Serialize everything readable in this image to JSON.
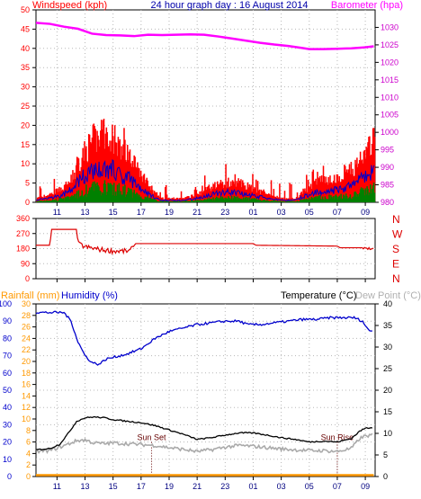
{
  "chart_data": [
    {
      "type": "line",
      "panel": "wind-and-barometer",
      "title": "24 hour graph day : 16 August 2014",
      "left_axis_label": "Windspeed (kph)",
      "right_axis_label": "Barometer (hpa)",
      "x_ticks": [
        "11",
        "13",
        "15",
        "17",
        "19",
        "21",
        "23",
        "01",
        "03",
        "05",
        "07",
        "09"
      ],
      "x_range": [
        9.5,
        33.7
      ],
      "left_ticks": [
        0,
        5,
        10,
        15,
        20,
        25,
        30,
        35,
        40,
        45,
        50
      ],
      "left_range": [
        0,
        50
      ],
      "right_ticks": [
        980,
        985,
        990,
        995,
        1000,
        1005,
        1010,
        1015,
        1020,
        1025,
        1030
      ],
      "right_range": [
        980,
        1035
      ],
      "barometer": {
        "color": "#ff00ff",
        "points": [
          [
            9.5,
            1031.3
          ],
          [
            10.5,
            1031.0
          ],
          [
            11.5,
            1030.2
          ],
          [
            12.5,
            1029.6
          ],
          [
            13.5,
            1028.2
          ],
          [
            14.5,
            1027.8
          ],
          [
            15.5,
            1027.7
          ],
          [
            16.5,
            1027.5
          ],
          [
            17.5,
            1027.9
          ],
          [
            18.5,
            1027.8
          ],
          [
            19.5,
            1027.9
          ],
          [
            20.5,
            1028.0
          ],
          [
            21.5,
            1027.9
          ],
          [
            22.5,
            1027.4
          ],
          [
            23.5,
            1026.8
          ],
          [
            24.5,
            1026.2
          ],
          [
            25.5,
            1025.6
          ],
          [
            26.5,
            1025.1
          ],
          [
            27.5,
            1024.7
          ],
          [
            28.5,
            1024.1
          ],
          [
            29.0,
            1023.8
          ],
          [
            30.0,
            1023.8
          ],
          [
            31.0,
            1023.9
          ],
          [
            32.0,
            1024.0
          ],
          [
            33.0,
            1024.3
          ],
          [
            33.6,
            1024.6
          ]
        ]
      },
      "wind_gust_color": "#ff0000",
      "wind_avg_color": "#0000cc",
      "wind_lull_color": "#008000",
      "wind_profile": [
        [
          9.5,
          1
        ],
        [
          10.5,
          2
        ],
        [
          11.5,
          4
        ],
        [
          12.0,
          6
        ],
        [
          12.8,
          12
        ],
        [
          13.6,
          16
        ],
        [
          14.4,
          17
        ],
        [
          15.0,
          16
        ],
        [
          15.8,
          13
        ],
        [
          16.5,
          10
        ],
        [
          17.2,
          6
        ],
        [
          17.8,
          3
        ],
        [
          18.4,
          1
        ],
        [
          19.0,
          1
        ],
        [
          20.0,
          1
        ],
        [
          21.0,
          2
        ],
        [
          22.0,
          4
        ],
        [
          23.0,
          5
        ],
        [
          24.0,
          5
        ],
        [
          24.6,
          4
        ],
        [
          25.2,
          3
        ],
        [
          26.0,
          2
        ],
        [
          27.0,
          1
        ],
        [
          28.0,
          1
        ],
        [
          28.6,
          3
        ],
        [
          29.5,
          5
        ],
        [
          30.3,
          6
        ],
        [
          31.0,
          6
        ],
        [
          31.6,
          7
        ],
        [
          32.2,
          9
        ],
        [
          32.8,
          12
        ],
        [
          33.2,
          14
        ],
        [
          33.6,
          16
        ]
      ]
    },
    {
      "type": "line",
      "panel": "wind-direction",
      "left_ticks": [
        0,
        90,
        180,
        270,
        360
      ],
      "left_range": [
        0,
        360
      ],
      "compass_labels": [
        "N",
        "W",
        "S",
        "E",
        "N"
      ],
      "color": "#dd0000",
      "points": [
        [
          9.5,
          200
        ],
        [
          10.5,
          200
        ],
        [
          10.6,
          295
        ],
        [
          12.4,
          295
        ],
        [
          12.5,
          210
        ],
        [
          13.0,
          190
        ],
        [
          14.0,
          175
        ],
        [
          15.0,
          165
        ],
        [
          16.2,
          165
        ],
        [
          16.4,
          185
        ],
        [
          16.6,
          210
        ],
        [
          25.0,
          210
        ],
        [
          25.2,
          200
        ],
        [
          31.0,
          195
        ],
        [
          31.2,
          185
        ],
        [
          33.0,
          185
        ],
        [
          33.6,
          175
        ]
      ]
    },
    {
      "type": "line",
      "panel": "rain-humidity-temperature",
      "rain_label": "Rainfall (mm)",
      "humidity_label": "Humidity (%)",
      "temperature_label": "Temperature (°C)",
      "dewpoint_label": "Dew Point (°C)",
      "rain_ticks": [
        0,
        2,
        4,
        6,
        8,
        10,
        12,
        14,
        16,
        18,
        20,
        22,
        24,
        26,
        28,
        30
      ],
      "rain_range": [
        0,
        30
      ],
      "humidity_ticks": [
        0,
        10,
        20,
        30,
        40,
        50,
        60,
        70,
        80,
        90,
        100
      ],
      "humidity_range": [
        0,
        100
      ],
      "temp_ticks": [
        0,
        5,
        10,
        15,
        20,
        25,
        30,
        35,
        40
      ],
      "temp_range": [
        0,
        40
      ],
      "sunset_label": "Sun Set",
      "sunset_x": 17.75,
      "sunrise_label": "Sun Rise",
      "sunrise_x": 31.0,
      "humidity": {
        "color": "#0000cc",
        "points": [
          [
            9.5,
            95
          ],
          [
            10.5,
            95
          ],
          [
            11.5,
            95
          ],
          [
            12.0,
            90
          ],
          [
            12.5,
            78
          ],
          [
            13.0,
            70
          ],
          [
            13.5,
            66
          ],
          [
            14.0,
            65
          ],
          [
            14.5,
            68
          ],
          [
            15.0,
            69
          ],
          [
            16.0,
            71
          ],
          [
            17.0,
            74
          ],
          [
            18.0,
            80
          ],
          [
            19.0,
            84
          ],
          [
            20.0,
            86
          ],
          [
            21.0,
            88
          ],
          [
            22.0,
            89
          ],
          [
            23.0,
            90
          ],
          [
            24.0,
            90
          ],
          [
            24.6,
            88
          ],
          [
            25.5,
            88
          ],
          [
            26.5,
            89
          ],
          [
            27.5,
            90
          ],
          [
            28.5,
            91
          ],
          [
            29.5,
            91
          ],
          [
            30.5,
            92
          ],
          [
            31.5,
            92
          ],
          [
            32.2,
            92
          ],
          [
            32.8,
            90
          ],
          [
            33.2,
            85
          ],
          [
            33.6,
            84
          ]
        ]
      },
      "temperature": {
        "color": "#000000",
        "points": [
          [
            9.5,
            6.2
          ],
          [
            10.5,
            6.5
          ],
          [
            11.2,
            7.5
          ],
          [
            11.8,
            10.0
          ],
          [
            12.4,
            12.8
          ],
          [
            13.0,
            13.6
          ],
          [
            13.6,
            13.8
          ],
          [
            14.4,
            13.6
          ],
          [
            15.0,
            13.2
          ],
          [
            16.0,
            12.8
          ],
          [
            17.0,
            12.5
          ],
          [
            18.0,
            11.8
          ],
          [
            19.0,
            10.8
          ],
          [
            20.0,
            9.8
          ],
          [
            21.0,
            8.6
          ],
          [
            22.0,
            9.0
          ],
          [
            23.0,
            9.6
          ],
          [
            24.0,
            10.1
          ],
          [
            25.0,
            10.1
          ],
          [
            26.0,
            9.6
          ],
          [
            27.0,
            9.0
          ],
          [
            28.0,
            8.6
          ],
          [
            29.0,
            8.0
          ],
          [
            30.0,
            8.2
          ],
          [
            31.0,
            8.0
          ],
          [
            32.0,
            8.8
          ],
          [
            32.6,
            10.5
          ],
          [
            33.0,
            11.2
          ],
          [
            33.6,
            11.4
          ]
        ]
      },
      "dewpoint": {
        "color": "#aaaaaa",
        "points": [
          [
            9.5,
            5.8
          ],
          [
            10.5,
            6.0
          ],
          [
            11.2,
            6.8
          ],
          [
            11.8,
            7.5
          ],
          [
            12.4,
            8.3
          ],
          [
            13.0,
            8.5
          ],
          [
            13.6,
            7.8
          ],
          [
            14.4,
            7.6
          ],
          [
            15.0,
            7.8
          ],
          [
            16.0,
            7.6
          ],
          [
            17.0,
            7.4
          ],
          [
            18.0,
            7.2
          ],
          [
            19.0,
            6.7
          ],
          [
            20.0,
            6.3
          ],
          [
            21.0,
            5.8
          ],
          [
            22.0,
            6.2
          ],
          [
            23.0,
            6.8
          ],
          [
            24.0,
            7.2
          ],
          [
            25.0,
            7.0
          ],
          [
            26.0,
            6.7
          ],
          [
            27.0,
            6.4
          ],
          [
            28.0,
            6.2
          ],
          [
            29.0,
            6.0
          ],
          [
            30.0,
            6.0
          ],
          [
            31.0,
            5.8
          ],
          [
            32.0,
            6.5
          ],
          [
            32.6,
            8.8
          ],
          [
            33.0,
            9.4
          ],
          [
            33.6,
            9.6
          ]
        ]
      },
      "rainfall": {
        "color": "#ff9900",
        "points": [
          [
            9.5,
            0
          ],
          [
            33.6,
            0
          ]
        ]
      }
    }
  ]
}
